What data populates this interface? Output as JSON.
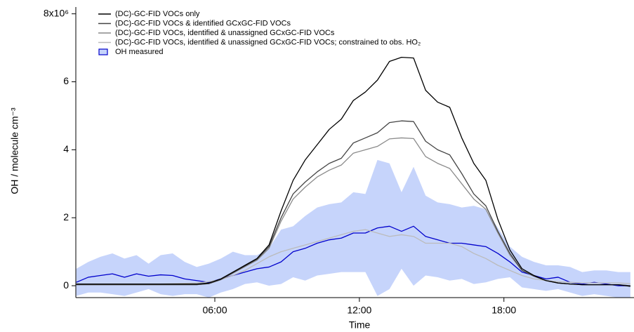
{
  "chart_data": {
    "type": "line",
    "xlabel": "Time",
    "ylabel": "OH / molecule cm⁻³",
    "x": [
      0.25,
      0.75,
      1.25,
      1.75,
      2.25,
      2.75,
      3.25,
      3.75,
      4.25,
      4.75,
      5.25,
      5.75,
      6.25,
      6.75,
      7.25,
      7.75,
      8.25,
      8.75,
      9.25,
      9.75,
      10.25,
      10.75,
      11.25,
      11.75,
      12.25,
      12.75,
      13.25,
      13.75,
      14.25,
      14.75,
      15.25,
      15.75,
      16.25,
      16.75,
      17.25,
      17.75,
      18.25,
      18.75,
      19.25,
      19.75,
      20.25,
      20.75,
      21.25,
      21.75,
      22.25,
      22.75,
      23.25
    ],
    "xlim": [
      0.23,
      23.4
    ],
    "xticks": [
      {
        "value": 6,
        "label": "06:00"
      },
      {
        "value": 12,
        "label": "12:00"
      },
      {
        "value": 18,
        "label": "18:00"
      }
    ],
    "ylim": [
      -0.35,
      8.2
    ],
    "yticks": [
      0,
      2,
      4,
      6,
      {
        "value": 8,
        "label": "8x10⁶"
      }
    ],
    "series": [
      {
        "name": "(DC)-GC-FID VOCs only",
        "color": "#000000",
        "values": [
          0.05,
          0.05,
          0.05,
          0.05,
          0.05,
          0.05,
          0.05,
          0.05,
          0.05,
          0.05,
          0.05,
          0.08,
          0.2,
          0.4,
          0.6,
          0.8,
          1.2,
          2.2,
          3.1,
          3.7,
          4.15,
          4.6,
          4.9,
          5.45,
          5.7,
          6.05,
          6.6,
          6.72,
          6.7,
          5.75,
          5.4,
          5.25,
          4.35,
          3.6,
          3.1,
          1.95,
          1.05,
          0.5,
          0.3,
          0.15,
          0.08,
          0.05,
          0.03,
          0.03,
          0.03,
          0.03,
          -0.02
        ]
      },
      {
        "name": "(DC)-GC-FID VOCs & identified GCxGC-FID VOCs",
        "color": "#444444",
        "values": [
          0.03,
          0.03,
          0.03,
          0.03,
          0.03,
          0.03,
          0.03,
          0.03,
          0.03,
          0.03,
          0.03,
          0.06,
          0.18,
          0.38,
          0.58,
          0.78,
          1.15,
          2.0,
          2.7,
          3.05,
          3.35,
          3.6,
          3.75,
          4.2,
          4.35,
          4.5,
          4.8,
          4.85,
          4.83,
          4.25,
          4.0,
          3.85,
          3.3,
          2.7,
          2.35,
          1.6,
          0.95,
          0.45,
          0.28,
          0.15,
          0.08,
          0.05,
          0.03,
          0.03,
          0.03,
          0.03,
          0.0
        ]
      },
      {
        "name": "(DC)-GC-FID VOCs, identified & unassigned GCxGC-FID VOCs",
        "color": "#8a8a8a",
        "values": [
          0.03,
          0.03,
          0.03,
          0.03,
          0.03,
          0.03,
          0.03,
          0.03,
          0.03,
          0.03,
          0.03,
          0.06,
          0.18,
          0.37,
          0.56,
          0.75,
          1.1,
          1.9,
          2.55,
          2.9,
          3.2,
          3.4,
          3.55,
          3.9,
          4.0,
          4.1,
          4.32,
          4.35,
          4.33,
          3.8,
          3.6,
          3.45,
          3.0,
          2.55,
          2.25,
          1.55,
          0.9,
          0.45,
          0.28,
          0.15,
          0.08,
          0.05,
          0.03,
          0.03,
          0.03,
          0.03,
          0.0
        ]
      },
      {
        "name": "(DC)-GC-FID VOCs, identified & unassigned GCxGC-FID VOCs; constrained to obs. HO₂",
        "color": "#bbbbbb",
        "values": [
          0.05,
          0.05,
          0.05,
          0.05,
          0.05,
          0.05,
          0.05,
          0.05,
          0.06,
          0.07,
          0.08,
          0.12,
          0.18,
          0.3,
          0.45,
          0.65,
          0.85,
          1.0,
          1.1,
          1.2,
          1.3,
          1.4,
          1.5,
          1.6,
          1.65,
          1.55,
          1.45,
          1.5,
          1.45,
          1.25,
          1.25,
          1.25,
          1.15,
          0.95,
          0.8,
          0.6,
          0.45,
          0.3,
          0.2,
          0.15,
          0.12,
          0.1,
          0.08,
          0.08,
          0.08,
          0.08,
          0.06
        ]
      },
      {
        "name": "OH measured",
        "color": "#0000cc",
        "fill": "#c6d4fb",
        "values": [
          0.1,
          0.25,
          0.3,
          0.35,
          0.25,
          0.35,
          0.28,
          0.32,
          0.3,
          0.2,
          0.15,
          0.1,
          0.2,
          0.3,
          0.4,
          0.5,
          0.55,
          0.7,
          1.0,
          1.1,
          1.25,
          1.35,
          1.4,
          1.55,
          1.55,
          1.7,
          1.75,
          1.6,
          1.75,
          1.45,
          1.35,
          1.25,
          1.25,
          1.2,
          1.15,
          0.95,
          0.7,
          0.4,
          0.3,
          0.2,
          0.25,
          0.1,
          0.05,
          0.1,
          0.05,
          0.0,
          0.0
        ],
        "upper": [
          0.5,
          0.7,
          0.85,
          0.95,
          0.8,
          0.9,
          0.65,
          0.9,
          0.95,
          0.7,
          0.55,
          0.65,
          0.8,
          1.0,
          0.9,
          0.9,
          1.1,
          1.65,
          1.75,
          2.05,
          2.3,
          2.4,
          2.45,
          2.75,
          2.7,
          3.7,
          3.6,
          2.75,
          3.5,
          2.65,
          2.45,
          2.4,
          2.3,
          2.35,
          2.25,
          1.7,
          1.15,
          0.85,
          0.7,
          0.6,
          0.6,
          0.55,
          0.4,
          0.45,
          0.45,
          0.4,
          0.4
        ],
        "lower": [
          -0.3,
          -0.2,
          -0.2,
          -0.25,
          -0.3,
          -0.2,
          -0.1,
          -0.25,
          -0.3,
          -0.25,
          -0.25,
          -0.35,
          -0.2,
          -0.1,
          0.05,
          0.1,
          0.0,
          0.05,
          0.25,
          0.15,
          0.3,
          0.35,
          0.4,
          0.4,
          0.4,
          -0.3,
          -0.1,
          0.5,
          0.0,
          0.3,
          0.25,
          0.15,
          0.2,
          0.05,
          0.1,
          0.2,
          0.25,
          -0.05,
          -0.1,
          -0.15,
          -0.1,
          -0.2,
          -0.3,
          -0.25,
          -0.3,
          -0.35,
          -0.35
        ]
      }
    ]
  }
}
